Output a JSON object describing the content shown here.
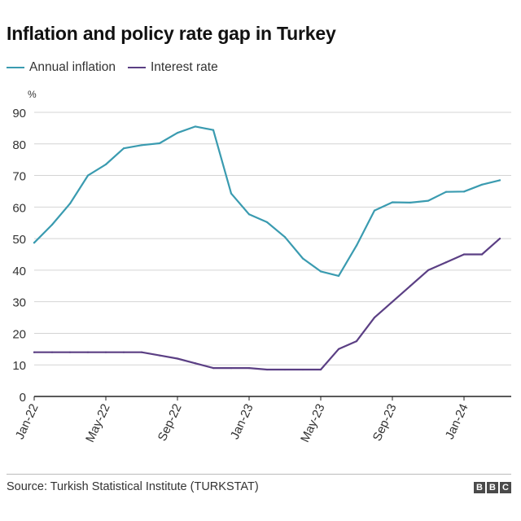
{
  "chart_data": {
    "type": "line",
    "title": "Inflation and policy rate gap in Turkey",
    "ylabel": "%",
    "xlabel": "",
    "ylim": [
      0,
      90
    ],
    "yticks": [
      0,
      10,
      20,
      30,
      40,
      50,
      60,
      70,
      80,
      90
    ],
    "x": [
      "Jan-22",
      "Feb-22",
      "Mar-22",
      "Apr-22",
      "May-22",
      "Jun-22",
      "Jul-22",
      "Aug-22",
      "Sep-22",
      "Oct-22",
      "Nov-22",
      "Dec-22",
      "Jan-23",
      "Feb-23",
      "Mar-23",
      "Apr-23",
      "May-23",
      "Jun-23",
      "Jul-23",
      "Aug-23",
      "Sep-23",
      "Oct-23",
      "Nov-23",
      "Dec-23",
      "Jan-24",
      "Feb-24",
      "Mar-24"
    ],
    "xtick_labels": [
      "Jan-22",
      "May-22",
      "Sep-22",
      "Jan-23",
      "May-23",
      "Sep-23",
      "Jan-24"
    ],
    "series": [
      {
        "name": "Annual inflation",
        "color": "#3a9bb0",
        "values": [
          48.7,
          54.4,
          61.1,
          70.0,
          73.5,
          78.6,
          79.6,
          80.2,
          83.5,
          85.5,
          84.4,
          64.3,
          57.7,
          55.2,
          50.5,
          43.7,
          39.6,
          38.2,
          47.8,
          58.9,
          61.5,
          61.4,
          62.0,
          64.8,
          64.9,
          67.1,
          68.5
        ]
      },
      {
        "name": "Interest rate",
        "color": "#5b3f84",
        "values": [
          14,
          14,
          14,
          14,
          14,
          14,
          14,
          13,
          12,
          10.5,
          9,
          9,
          9,
          8.5,
          8.5,
          8.5,
          8.5,
          15,
          17.5,
          25,
          30,
          35,
          40,
          42.5,
          45,
          45,
          50
        ]
      }
    ],
    "grid": true,
    "legend_position": "top-left"
  },
  "footer": {
    "source": "Source: Turkish Statistical Institute (TURKSTAT)",
    "logo_letters": [
      "B",
      "B",
      "C"
    ]
  }
}
